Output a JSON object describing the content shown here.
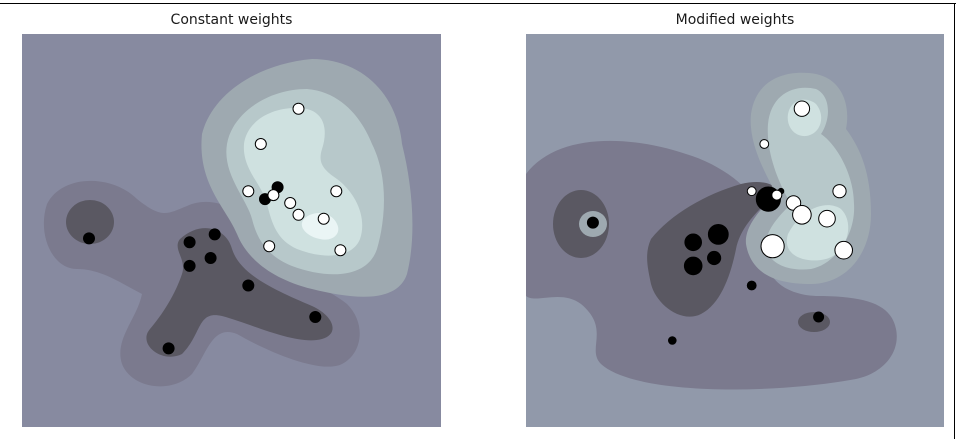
{
  "chart_data": [
    {
      "type": "scatter",
      "title": "Constant weights",
      "contour_colors": [
        "#878aa0",
        "#7b7a8e",
        "#5a5862",
        "#9ea9b0",
        "#b7c8ca",
        "#cfe1e0",
        "#eaf5f5"
      ],
      "points": [
        {
          "x": 0.16,
          "y": 0.52,
          "label": 0,
          "weight": 1
        },
        {
          "x": 0.4,
          "y": 0.53,
          "label": 0,
          "weight": 1
        },
        {
          "x": 0.46,
          "y": 0.51,
          "label": 0,
          "weight": 1
        },
        {
          "x": 0.4,
          "y": 0.59,
          "label": 0,
          "weight": 1
        },
        {
          "x": 0.45,
          "y": 0.57,
          "label": 0,
          "weight": 1
        },
        {
          "x": 0.54,
          "y": 0.64,
          "label": 0,
          "weight": 1
        },
        {
          "x": 0.7,
          "y": 0.72,
          "label": 0,
          "weight": 1
        },
        {
          "x": 0.35,
          "y": 0.8,
          "label": 0,
          "weight": 1
        },
        {
          "x": 0.58,
          "y": 0.42,
          "label": 0,
          "weight": 1
        },
        {
          "x": 0.61,
          "y": 0.39,
          "label": 0,
          "weight": 1
        },
        {
          "x": 0.66,
          "y": 0.19,
          "label": 1,
          "weight": 1
        },
        {
          "x": 0.57,
          "y": 0.28,
          "label": 1,
          "weight": 1
        },
        {
          "x": 0.54,
          "y": 0.4,
          "label": 1,
          "weight": 1
        },
        {
          "x": 0.6,
          "y": 0.41,
          "label": 1,
          "weight": 1
        },
        {
          "x": 0.64,
          "y": 0.43,
          "label": 1,
          "weight": 1
        },
        {
          "x": 0.66,
          "y": 0.46,
          "label": 1,
          "weight": 1
        },
        {
          "x": 0.75,
          "y": 0.4,
          "label": 1,
          "weight": 1
        },
        {
          "x": 0.72,
          "y": 0.47,
          "label": 1,
          "weight": 1
        },
        {
          "x": 0.59,
          "y": 0.54,
          "label": 1,
          "weight": 1
        },
        {
          "x": 0.76,
          "y": 0.55,
          "label": 1,
          "weight": 1
        }
      ]
    },
    {
      "type": "scatter",
      "title": "Modified weights",
      "contour_colors": [
        "#9199aa",
        "#7b7a8e",
        "#5a5862",
        "#9ea9b0",
        "#b7c8ca",
        "#cfe1e0",
        "#eaf5f5"
      ],
      "points": [
        {
          "x": 0.16,
          "y": 0.48,
          "label": 0,
          "weight": 1
        },
        {
          "x": 0.4,
          "y": 0.53,
          "label": 0,
          "weight": 1.5
        },
        {
          "x": 0.46,
          "y": 0.51,
          "label": 0,
          "weight": 1.8
        },
        {
          "x": 0.4,
          "y": 0.59,
          "label": 0,
          "weight": 1.6
        },
        {
          "x": 0.45,
          "y": 0.57,
          "label": 0,
          "weight": 1.2
        },
        {
          "x": 0.54,
          "y": 0.64,
          "label": 0,
          "weight": 0.8
        },
        {
          "x": 0.7,
          "y": 0.72,
          "label": 0,
          "weight": 0.9
        },
        {
          "x": 0.35,
          "y": 0.78,
          "label": 0,
          "weight": 0.7
        },
        {
          "x": 0.58,
          "y": 0.42,
          "label": 0,
          "weight": 2.2
        },
        {
          "x": 0.61,
          "y": 0.4,
          "label": 0,
          "weight": 0.5
        },
        {
          "x": 0.66,
          "y": 0.19,
          "label": 1,
          "weight": 1.4
        },
        {
          "x": 0.57,
          "y": 0.28,
          "label": 1,
          "weight": 0.8
        },
        {
          "x": 0.54,
          "y": 0.4,
          "label": 1,
          "weight": 0.8
        },
        {
          "x": 0.6,
          "y": 0.41,
          "label": 1,
          "weight": 0.9
        },
        {
          "x": 0.64,
          "y": 0.43,
          "label": 1,
          "weight": 1.3
        },
        {
          "x": 0.66,
          "y": 0.46,
          "label": 1,
          "weight": 1.7
        },
        {
          "x": 0.75,
          "y": 0.4,
          "label": 1,
          "weight": 1.2
        },
        {
          "x": 0.72,
          "y": 0.47,
          "label": 1,
          "weight": 1.5
        },
        {
          "x": 0.59,
          "y": 0.54,
          "label": 1,
          "weight": 2.1
        },
        {
          "x": 0.76,
          "y": 0.55,
          "label": 1,
          "weight": 1.6
        }
      ]
    }
  ]
}
